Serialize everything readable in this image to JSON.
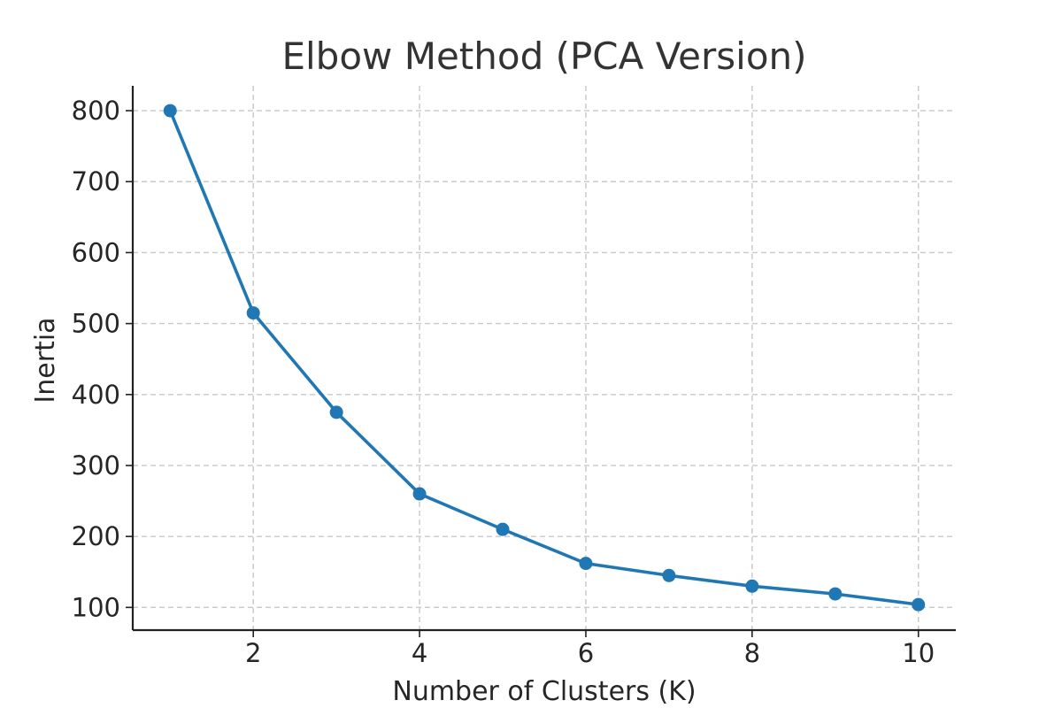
{
  "chart_data": {
    "type": "line",
    "title": "Elbow Method (PCA Version)",
    "xlabel": "Number of Clusters (K)",
    "ylabel": "Inertia",
    "x": [
      1,
      2,
      3,
      4,
      5,
      6,
      7,
      8,
      9,
      10
    ],
    "series": [
      {
        "values": [
          800,
          515,
          375,
          260,
          210,
          162,
          145,
          130,
          119,
          104
        ]
      }
    ],
    "xlim": [
      0.55,
      10.45
    ],
    "ylim": [
      68,
      835
    ],
    "xticks": [
      "2",
      "4",
      "6",
      "8",
      "10"
    ],
    "yticks": [
      "100",
      "200",
      "300",
      "400",
      "500",
      "600",
      "700",
      "800"
    ],
    "grid": true,
    "marker": "circle",
    "colors": {
      "line": "#1f77b4",
      "grid": "#c8c8c8",
      "axis": "#222222",
      "title": "#333333",
      "text": "#262626"
    }
  }
}
